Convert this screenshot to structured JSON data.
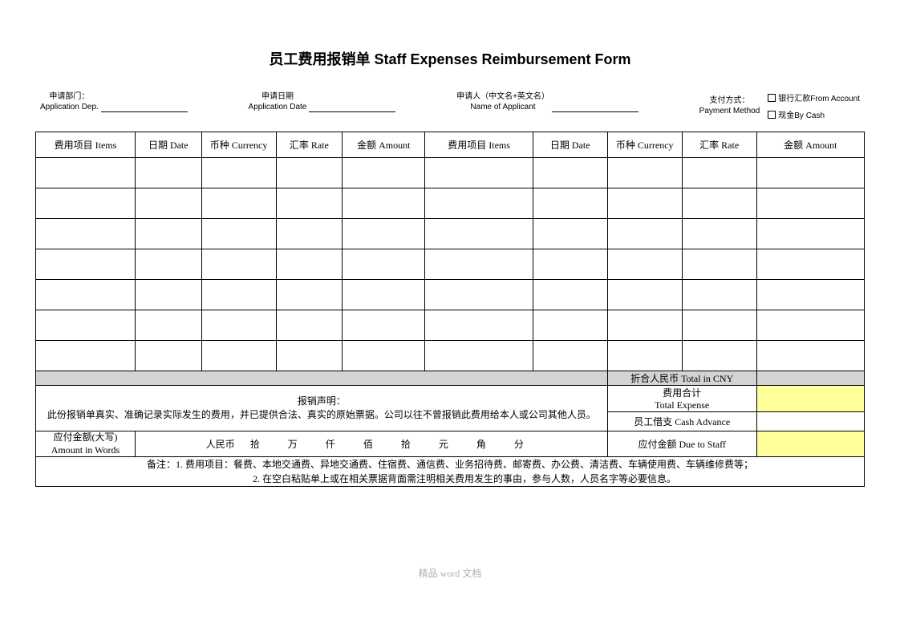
{
  "title": "员工费用报销单 Staff Expenses Reimbursement Form",
  "header": {
    "dept": {
      "cn": "申请部门：",
      "en": "Application Dep."
    },
    "date": {
      "cn": "申请日期",
      "en": "Application Date"
    },
    "applicant": {
      "cn": "申请人（中文名+英文名）",
      "en": "Name of Applicant"
    },
    "payment": {
      "cn": "支付方式：",
      "en": "Payment Method"
    },
    "opt1": "银行汇款From Account",
    "opt2": "现金By Cash"
  },
  "columns": {
    "items": "费用项目 Items",
    "date": "日期 Date",
    "currency": "币种 Currency",
    "rate": "汇率 Rate",
    "amount": "金额 Amount"
  },
  "summary": {
    "total_cny": "折合人民币 Total in CNY",
    "total_expense_cn": "费用合计",
    "total_expense_en": "Total Expense",
    "cash_advance": "员工借支 Cash Advance",
    "due_to_staff": "应付金额 Due to Staff"
  },
  "declaration": {
    "label": "报销声明：",
    "text": "此份报销单真实、准确记录实际发生的费用，并已提供合法、真实的原始票据。公司以往不曾报销此费用给本人或公司其他人员。"
  },
  "amount_words": {
    "label_cn": "应付金额(大写)",
    "label_en": "Amount in Words",
    "prefix": "人民币",
    "u1": "拾",
    "u2": "万",
    "u3": "仟",
    "u4": "佰",
    "u5": "拾",
    "u6": "元",
    "u7": "角",
    "u8": "分"
  },
  "notes": {
    "line1": "备注：1. 费用项目：餐费、本地交通费、异地交通费、住宿费、通信费、业务招待费、邮寄费、办公费、清洁费、车辆使用费、车辆维修费等；",
    "line2indent": "　　　2. 在空白粘贴单上或在相关票据背面需注明相关费用发生的事由，参与人数，人员名字等必要信息。"
  },
  "footer": "精品 word 文档",
  "colors": {
    "gray": "#d3d3d3",
    "yellow": "#ffff99",
    "border": "#000000",
    "footer_text": "#b0b0b0"
  },
  "layout": {
    "data_rows": 7,
    "col_widths_pct": [
      12,
      8,
      9,
      8,
      10,
      13,
      9,
      9,
      9,
      13
    ]
  }
}
